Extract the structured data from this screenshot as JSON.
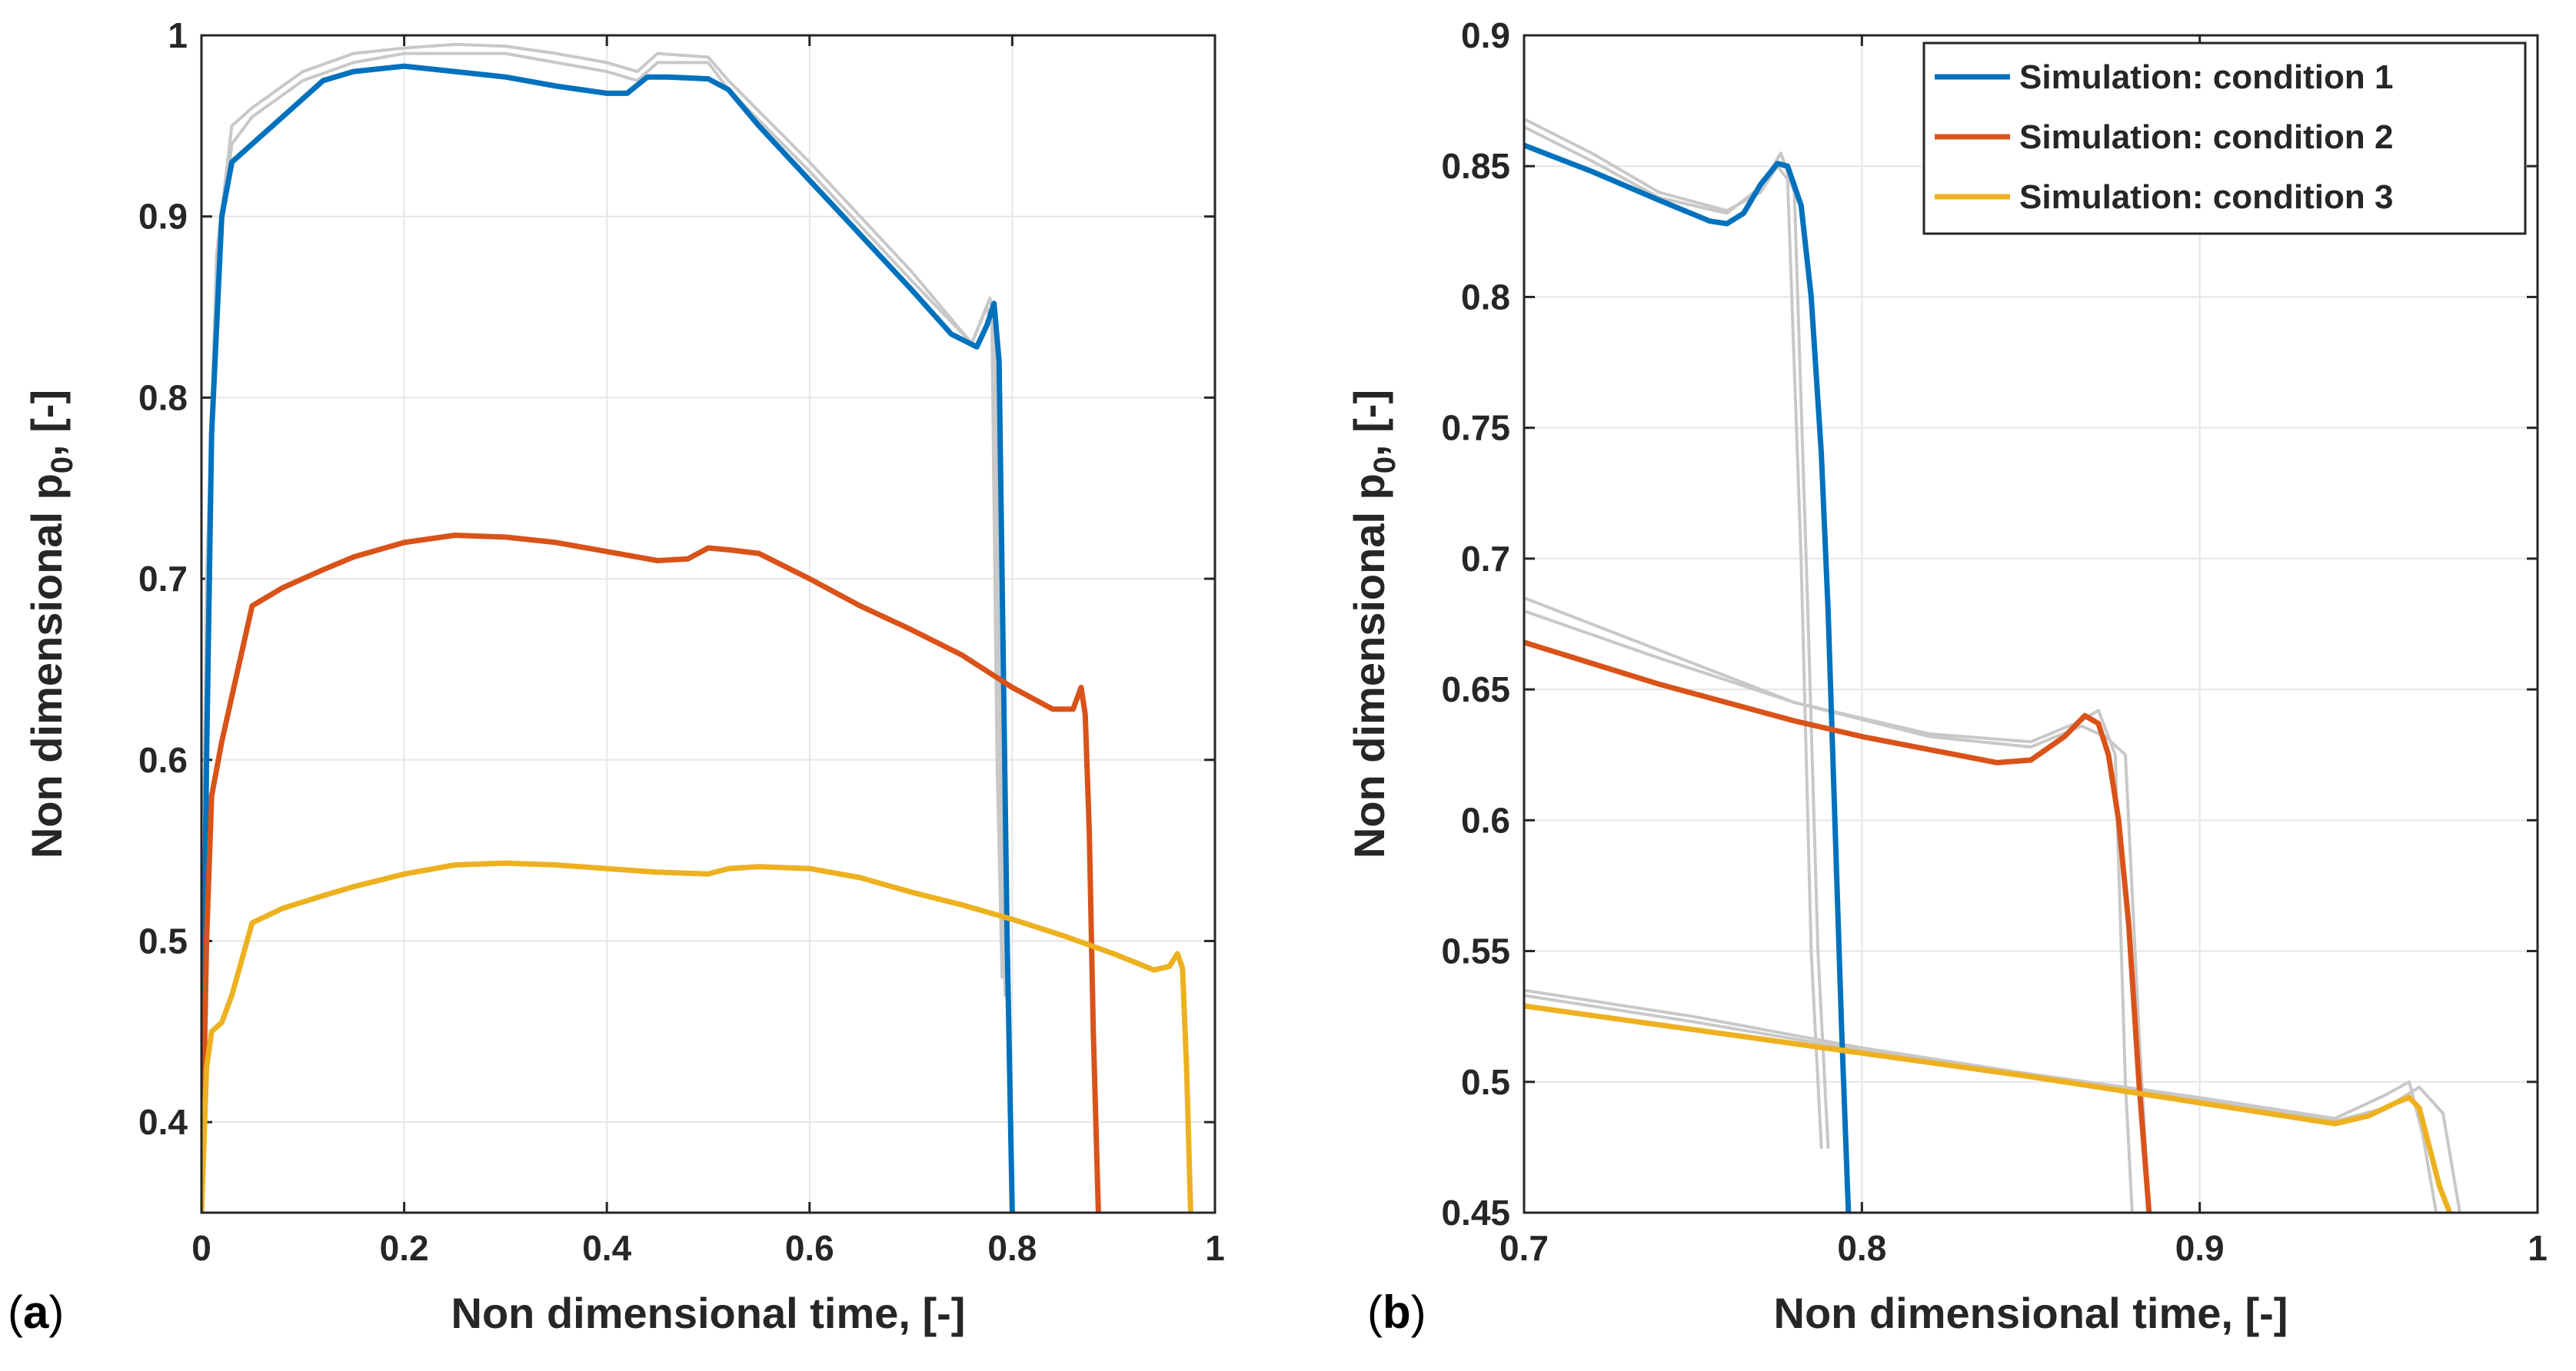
{
  "chart_data": [
    {
      "panel_label_prefix": "(",
      "panel_letter": "a",
      "panel_label_suffix": ")",
      "type": "line",
      "xlabel": "Non dimensional time, [-]",
      "ylabel_main": "Non dimensional p",
      "ylabel_sub": "0",
      "ylabel_tail": ", [-]",
      "xlim": [
        0,
        1
      ],
      "ylim": [
        0.35,
        1.0
      ],
      "xticks": [
        "0",
        "0.2",
        "0.4",
        "0.6",
        "0.8",
        "1"
      ],
      "yticks": [
        "0.4",
        "0.5",
        "0.6",
        "0.7",
        "0.8",
        "0.9",
        "1"
      ],
      "grid": true,
      "background_curves": [
        {
          "x": [
            0.0,
            0.005,
            0.015,
            0.03,
            0.05,
            0.1,
            0.15,
            0.2,
            0.25,
            0.3,
            0.35,
            0.4,
            0.43,
            0.45,
            0.5,
            0.52,
            0.6,
            0.7,
            0.76,
            0.775,
            0.78,
            0.785,
            0.79
          ],
          "y": [
            0.45,
            0.7,
            0.88,
            0.95,
            0.96,
            0.98,
            0.99,
            0.993,
            0.995,
            0.994,
            0.99,
            0.985,
            0.98,
            0.99,
            0.988,
            0.975,
            0.93,
            0.87,
            0.83,
            0.85,
            0.84,
            0.6,
            0.48
          ]
        },
        {
          "x": [
            0.0,
            0.005,
            0.015,
            0.03,
            0.05,
            0.1,
            0.15,
            0.2,
            0.25,
            0.3,
            0.35,
            0.4,
            0.43,
            0.45,
            0.5,
            0.52,
            0.6,
            0.7,
            0.76,
            0.778,
            0.783,
            0.788,
            0.793
          ],
          "y": [
            0.45,
            0.69,
            0.87,
            0.94,
            0.955,
            0.975,
            0.985,
            0.99,
            0.99,
            0.99,
            0.985,
            0.98,
            0.975,
            0.985,
            0.985,
            0.97,
            0.925,
            0.865,
            0.83,
            0.855,
            0.84,
            0.6,
            0.47
          ]
        }
      ],
      "series": [
        {
          "name": "Simulation: condition 1",
          "color": "#0072BD",
          "x": [
            0.0,
            0.005,
            0.01,
            0.02,
            0.03,
            0.05,
            0.08,
            0.12,
            0.15,
            0.2,
            0.25,
            0.3,
            0.35,
            0.4,
            0.42,
            0.44,
            0.46,
            0.5,
            0.52,
            0.55,
            0.6,
            0.65,
            0.7,
            0.74,
            0.765,
            0.775,
            0.782,
            0.787,
            0.79,
            0.795,
            0.8
          ],
          "y": [
            0.35,
            0.6,
            0.78,
            0.9,
            0.93,
            0.94,
            0.955,
            0.975,
            0.98,
            0.983,
            0.98,
            0.977,
            0.972,
            0.968,
            0.968,
            0.977,
            0.977,
            0.976,
            0.97,
            0.95,
            0.92,
            0.89,
            0.86,
            0.835,
            0.828,
            0.84,
            0.852,
            0.82,
            0.7,
            0.5,
            0.35
          ]
        },
        {
          "name": "Simulation: condition 2",
          "color": "#D95319",
          "x": [
            0.0,
            0.005,
            0.01,
            0.02,
            0.03,
            0.05,
            0.08,
            0.12,
            0.15,
            0.2,
            0.25,
            0.3,
            0.35,
            0.4,
            0.45,
            0.48,
            0.5,
            0.52,
            0.55,
            0.6,
            0.65,
            0.7,
            0.75,
            0.8,
            0.84,
            0.86,
            0.868,
            0.872,
            0.876,
            0.88,
            0.885
          ],
          "y": [
            0.35,
            0.5,
            0.58,
            0.61,
            0.635,
            0.685,
            0.695,
            0.705,
            0.712,
            0.72,
            0.724,
            0.723,
            0.72,
            0.715,
            0.71,
            0.711,
            0.717,
            0.716,
            0.714,
            0.7,
            0.685,
            0.672,
            0.658,
            0.64,
            0.628,
            0.628,
            0.64,
            0.625,
            0.56,
            0.45,
            0.35
          ]
        },
        {
          "name": "Simulation: condition 3",
          "color": "#EDB120",
          "x": [
            0.0,
            0.005,
            0.01,
            0.02,
            0.03,
            0.05,
            0.08,
            0.12,
            0.15,
            0.2,
            0.25,
            0.3,
            0.35,
            0.4,
            0.45,
            0.5,
            0.52,
            0.55,
            0.6,
            0.65,
            0.7,
            0.75,
            0.8,
            0.85,
            0.9,
            0.94,
            0.955,
            0.963,
            0.968,
            0.972,
            0.976
          ],
          "y": [
            0.35,
            0.43,
            0.45,
            0.455,
            0.47,
            0.51,
            0.518,
            0.525,
            0.53,
            0.537,
            0.542,
            0.543,
            0.542,
            0.54,
            0.538,
            0.537,
            0.54,
            0.541,
            0.54,
            0.535,
            0.527,
            0.52,
            0.512,
            0.503,
            0.493,
            0.484,
            0.486,
            0.493,
            0.485,
            0.43,
            0.35
          ]
        }
      ]
    },
    {
      "panel_label_prefix": "(",
      "panel_letter": "b",
      "panel_label_suffix": ")",
      "type": "line",
      "xlabel": "Non dimensional time, [-]",
      "ylabel_main": "Non dimensional p",
      "ylabel_sub": "0",
      "ylabel_tail": ", [-]",
      "xlim": [
        0.7,
        1.0
      ],
      "ylim": [
        0.45,
        0.9
      ],
      "xticks": [
        "0.7",
        "0.8",
        "0.9",
        "1"
      ],
      "yticks": [
        "0.45",
        "0.5",
        "0.55",
        "0.6",
        "0.65",
        "0.7",
        "0.75",
        "0.8",
        "0.85",
        "0.9"
      ],
      "grid": true,
      "legend_position": "top-right",
      "background_curves": [
        {
          "x": [
            0.7,
            0.72,
            0.74,
            0.76,
            0.77,
            0.775,
            0.778,
            0.782,
            0.785,
            0.788
          ],
          "y": [
            0.868,
            0.855,
            0.84,
            0.833,
            0.84,
            0.85,
            0.845,
            0.7,
            0.55,
            0.475
          ]
        },
        {
          "x": [
            0.7,
            0.72,
            0.74,
            0.76,
            0.77,
            0.776,
            0.78,
            0.784,
            0.787,
            0.79
          ],
          "y": [
            0.865,
            0.852,
            0.838,
            0.832,
            0.842,
            0.855,
            0.84,
            0.68,
            0.55,
            0.475
          ]
        },
        {
          "x": [
            0.7,
            0.74,
            0.78,
            0.82,
            0.85,
            0.865,
            0.87,
            0.875,
            0.878,
            0.88
          ],
          "y": [
            0.685,
            0.665,
            0.645,
            0.633,
            0.63,
            0.638,
            0.642,
            0.625,
            0.5,
            0.45
          ]
        },
        {
          "x": [
            0.7,
            0.74,
            0.78,
            0.82,
            0.85,
            0.865,
            0.872,
            0.878,
            0.882,
            0.885
          ],
          "y": [
            0.68,
            0.662,
            0.645,
            0.632,
            0.628,
            0.636,
            0.632,
            0.625,
            0.52,
            0.45
          ]
        },
        {
          "x": [
            0.7,
            0.75,
            0.8,
            0.85,
            0.9,
            0.94,
            0.955,
            0.962,
            0.966,
            0.97
          ],
          "y": [
            0.535,
            0.525,
            0.513,
            0.503,
            0.494,
            0.486,
            0.495,
            0.5,
            0.48,
            0.45
          ]
        },
        {
          "x": [
            0.7,
            0.75,
            0.8,
            0.85,
            0.9,
            0.94,
            0.955,
            0.965,
            0.972,
            0.977
          ],
          "y": [
            0.533,
            0.523,
            0.512,
            0.502,
            0.493,
            0.485,
            0.49,
            0.498,
            0.488,
            0.45
          ]
        }
      ],
      "series": [
        {
          "name": "Simulation: condition 1",
          "color": "#0072BD",
          "x": [
            0.7,
            0.72,
            0.74,
            0.755,
            0.76,
            0.765,
            0.77,
            0.775,
            0.778,
            0.782,
            0.785,
            0.788,
            0.79,
            0.792,
            0.794,
            0.796
          ],
          "y": [
            0.858,
            0.848,
            0.837,
            0.829,
            0.828,
            0.832,
            0.843,
            0.851,
            0.85,
            0.835,
            0.8,
            0.74,
            0.68,
            0.6,
            0.52,
            0.45
          ]
        },
        {
          "name": "Simulation: condition 2",
          "color": "#D95319",
          "x": [
            0.7,
            0.72,
            0.74,
            0.76,
            0.78,
            0.8,
            0.82,
            0.84,
            0.85,
            0.86,
            0.866,
            0.87,
            0.873,
            0.876,
            0.879,
            0.882,
            0.885
          ],
          "y": [
            0.668,
            0.66,
            0.652,
            0.645,
            0.638,
            0.632,
            0.627,
            0.622,
            0.623,
            0.632,
            0.64,
            0.637,
            0.625,
            0.6,
            0.56,
            0.5,
            0.45
          ]
        },
        {
          "name": "Simulation: condition 3",
          "color": "#EDB120",
          "x": [
            0.7,
            0.75,
            0.8,
            0.85,
            0.9,
            0.93,
            0.94,
            0.95,
            0.958,
            0.962,
            0.965,
            0.968,
            0.971,
            0.974
          ],
          "y": [
            0.529,
            0.52,
            0.511,
            0.502,
            0.492,
            0.486,
            0.484,
            0.487,
            0.492,
            0.494,
            0.49,
            0.475,
            0.46,
            0.45
          ]
        }
      ]
    }
  ]
}
